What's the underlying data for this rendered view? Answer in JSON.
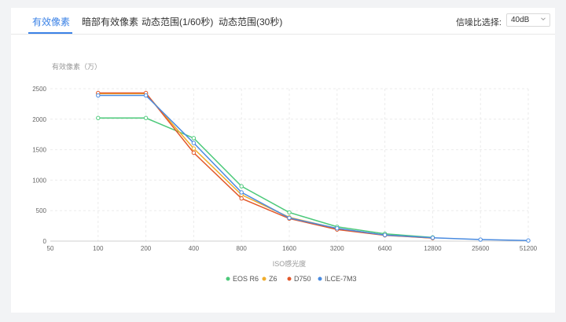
{
  "tabs": [
    {
      "label": "有效像素",
      "active": true
    },
    {
      "label": "暗部有效像素",
      "active": false
    },
    {
      "label": "动态范围(1/60秒)",
      "active": false
    },
    {
      "label": "动态范围(30秒)",
      "active": false
    }
  ],
  "snr": {
    "label": "信噪比选择:",
    "value": "40dB"
  },
  "icons": {
    "dropdown": "chevron-down-icon"
  },
  "colors": {
    "accent": "#3b82e6",
    "grid": "#ebebeb"
  },
  "chart_data": {
    "type": "line",
    "title": "",
    "ylabel": "有效像素（万）",
    "xlabel": "ISO感光度",
    "categories": [
      "50",
      "100",
      "200",
      "400",
      "800",
      "1600",
      "3200",
      "6400",
      "12800",
      "25600",
      "51200"
    ],
    "ylim": [
      0,
      2500
    ],
    "yticks": [
      0,
      500,
      1000,
      1500,
      2000,
      2500
    ],
    "grid": true,
    "legend_position": "bottom",
    "series": [
      {
        "name": "EOS R6",
        "color": "#4cc97a",
        "values": [
          null,
          2020,
          2020,
          1690,
          900,
          470,
          235,
          120,
          60,
          null,
          null
        ]
      },
      {
        "name": "Z6",
        "color": "#f0ad2d",
        "values": [
          null,
          2420,
          2420,
          1520,
          760,
          390,
          205,
          100,
          50,
          null,
          null
        ]
      },
      {
        "name": "D750",
        "color": "#e2582b",
        "values": [
          null,
          2430,
          2430,
          1450,
          700,
          370,
          190,
          95,
          50,
          null,
          null
        ]
      },
      {
        "name": "ILCE-7M3",
        "color": "#4a8be0",
        "values": [
          null,
          2390,
          2390,
          1610,
          800,
          380,
          210,
          100,
          55,
          25,
          10
        ]
      }
    ]
  }
}
